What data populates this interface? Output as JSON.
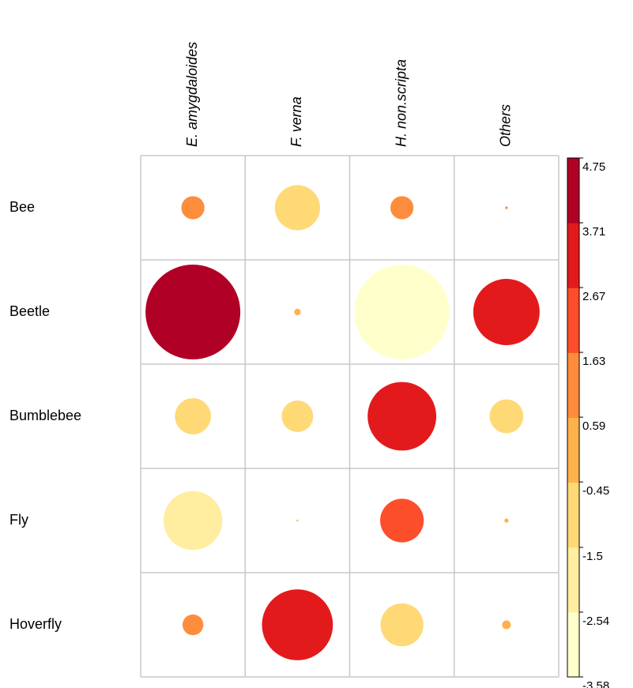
{
  "chart_data": {
    "type": "corrplot",
    "rows": [
      "Bee",
      "Beetle",
      "Bumblebee",
      "Fly",
      "Hoverfly"
    ],
    "columns": [
      "E. amygdaloides",
      "F. verna",
      "H. non.scripta",
      "Others"
    ],
    "values": [
      [
        1.6,
        -1.4,
        1.6,
        0.7
      ],
      [
        4.75,
        0.3,
        -3.58,
        3.5
      ],
      [
        -1.0,
        -0.8,
        3.6,
        -0.9
      ],
      [
        -2.0,
        0.5,
        2.5,
        0.4
      ],
      [
        1.5,
        3.7,
        -1.3,
        0.2
      ]
    ],
    "colors": [
      "#FFFFCC",
      "#FFEDA0",
      "#FED976",
      "#FEB24C",
      "#FD8D3C",
      "#FC4E2A",
      "#E31A1C",
      "#B10026"
    ],
    "clim": [
      -3.58,
      4.75
    ],
    "cticks": [
      -3.58,
      -2.54,
      -1.5,
      -0.45,
      0.59,
      1.63,
      2.67,
      3.71,
      4.75
    ]
  }
}
